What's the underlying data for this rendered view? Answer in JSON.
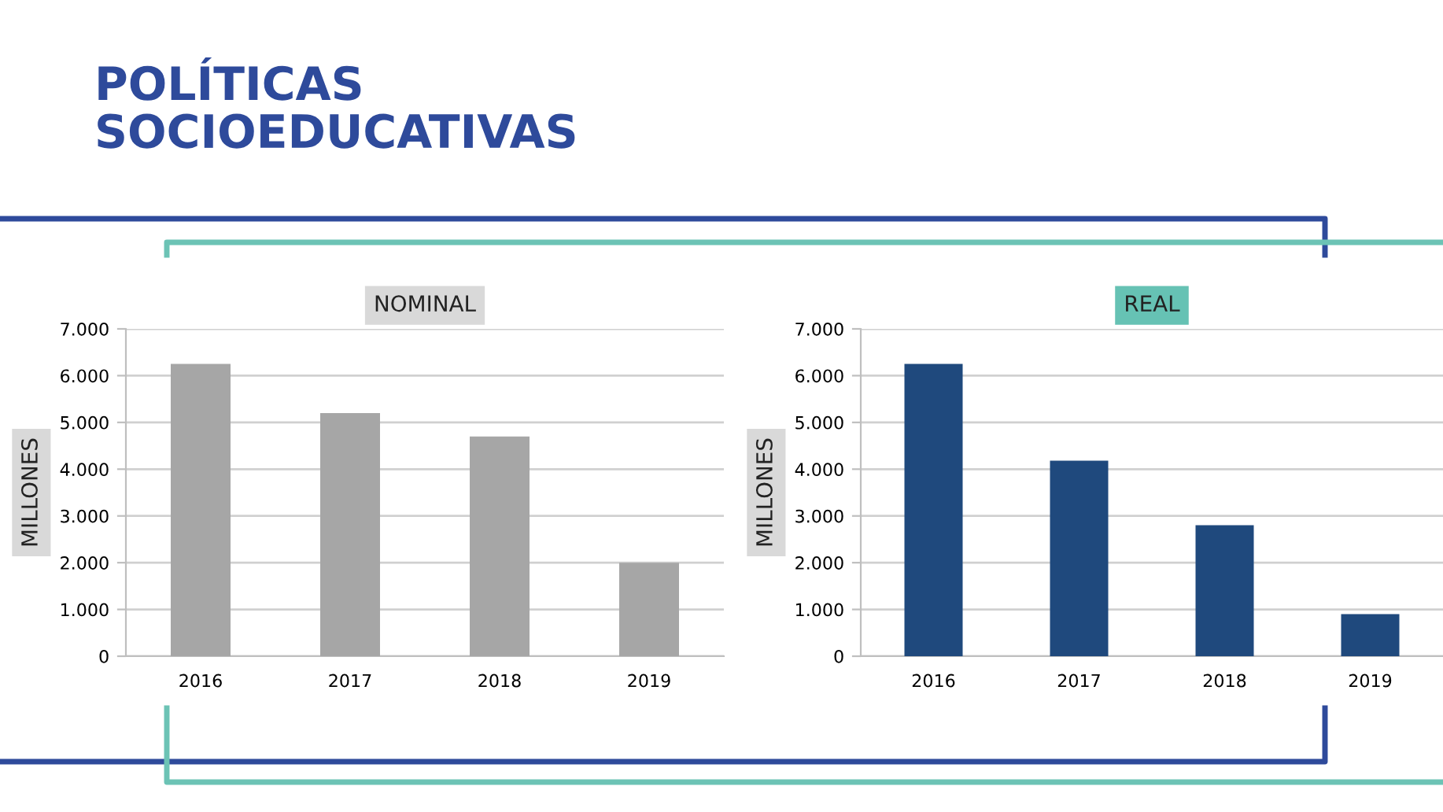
{
  "chart_data": [
    {
      "type": "bar",
      "title": "NOMINAL",
      "ylabel": "MILLONES",
      "annotations": [
        "POLÍTICAS\nSOCIOEDUCATIVAS"
      ],
      "categories": [
        "2016",
        "2017",
        "2018",
        "2019"
      ],
      "values": [
        6250,
        5200,
        4700,
        2000
      ],
      "color": "#a6a6a6",
      "ylim": [
        0,
        7000
      ],
      "yticks": [
        {
          "value": 0,
          "label": "0"
        },
        {
          "value": 1000,
          "label": "1.000"
        },
        {
          "value": 2000,
          "label": "2.000"
        },
        {
          "value": 3000,
          "label": "3.000"
        },
        {
          "value": 4000,
          "label": "4.000"
        },
        {
          "value": 5000,
          "label": "5.000"
        },
        {
          "value": 6000,
          "label": "6.000"
        },
        {
          "value": 7000,
          "label": "7.000"
        }
      ],
      "grid": "y"
    },
    {
      "type": "bar",
      "title": "REAL",
      "ylabel": "MILLONES",
      "categories": [
        "2016",
        "2017",
        "2018",
        "2019"
      ],
      "values": [
        6250,
        4180,
        2800,
        900
      ],
      "color": "#1f497d",
      "ylim": [
        0,
        7000
      ],
      "yticks": [
        {
          "value": 0,
          "label": "0"
        },
        {
          "value": 1000,
          "label": "1.000"
        },
        {
          "value": 2000,
          "label": "2.000"
        },
        {
          "value": 3000,
          "label": "3.000"
        },
        {
          "value": 4000,
          "label": "4.000"
        },
        {
          "value": 5000,
          "label": "5.000"
        },
        {
          "value": 6000,
          "label": "6.000"
        },
        {
          "value": 7000,
          "label": "7.000"
        }
      ],
      "grid": "y"
    }
  ]
}
